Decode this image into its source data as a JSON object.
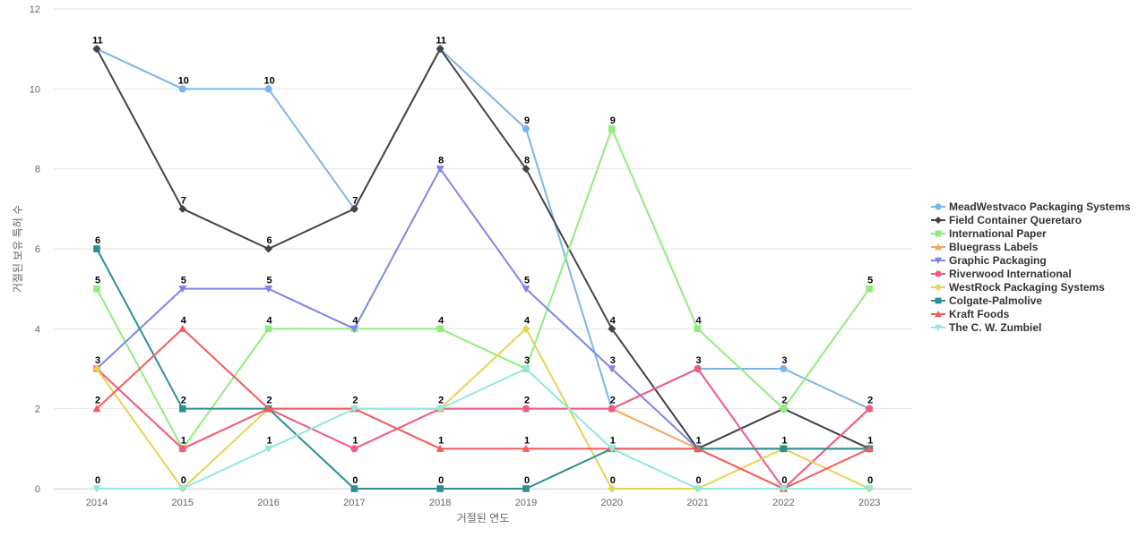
{
  "chart_data": {
    "type": "line",
    "title": "",
    "xlabel": "거절된 연도",
    "ylabel": "거절된 보유 특허 수",
    "x": [
      "2014",
      "2015",
      "2016",
      "2017",
      "2018",
      "2019",
      "2020",
      "2021",
      "2022",
      "2023"
    ],
    "ylim": [
      0,
      12
    ],
    "yticks": [
      0,
      2,
      4,
      6,
      8,
      10,
      12
    ],
    "grid": true,
    "legend_position": "right",
    "series": [
      {
        "name": "MeadWestvaco Packaging Systems",
        "color": "#7cb5ec",
        "marker": "circle",
        "values": [
          11,
          10,
          10,
          7,
          11,
          9,
          2,
          3,
          3,
          2
        ]
      },
      {
        "name": "Field Container Queretaro",
        "color": "#434348",
        "marker": "diamond",
        "values": [
          11,
          7,
          6,
          7,
          11,
          8,
          4,
          1,
          2,
          1
        ]
      },
      {
        "name": "International Paper",
        "color": "#90ed7d",
        "marker": "square",
        "values": [
          5,
          1,
          4,
          4,
          4,
          3,
          9,
          4,
          2,
          5
        ]
      },
      {
        "name": "Bluegrass Labels",
        "color": "#f7a35c",
        "marker": "triangle",
        "values": [
          3,
          1,
          2,
          2,
          2,
          2,
          2,
          1,
          0,
          2
        ]
      },
      {
        "name": "Graphic Packaging",
        "color": "#8085e9",
        "marker": "triangle-down",
        "values": [
          3,
          5,
          5,
          4,
          8,
          5,
          3,
          1,
          1,
          1
        ]
      },
      {
        "name": "Riverwood International",
        "color": "#f15c80",
        "marker": "circle",
        "values": [
          3,
          1,
          2,
          1,
          2,
          2,
          2,
          3,
          0,
          2
        ]
      },
      {
        "name": "WestRock Packaging Systems",
        "color": "#e4d354",
        "marker": "diamond",
        "values": [
          3,
          0,
          2,
          2,
          2,
          4,
          0,
          0,
          1,
          0
        ]
      },
      {
        "name": "Colgate-Palmolive",
        "color": "#2b908f",
        "marker": "square",
        "values": [
          6,
          2,
          2,
          0,
          0,
          0,
          1,
          1,
          1,
          1
        ]
      },
      {
        "name": "Kraft Foods",
        "color": "#f45b5b",
        "marker": "triangle",
        "values": [
          2,
          4,
          2,
          2,
          1,
          1,
          1,
          1,
          0,
          1
        ]
      },
      {
        "name": "The C. W. Zumbiel",
        "color": "#91e8e1",
        "marker": "triangle-down",
        "values": [
          0,
          0,
          1,
          2,
          2,
          3,
          1,
          0,
          0,
          0
        ]
      }
    ]
  }
}
